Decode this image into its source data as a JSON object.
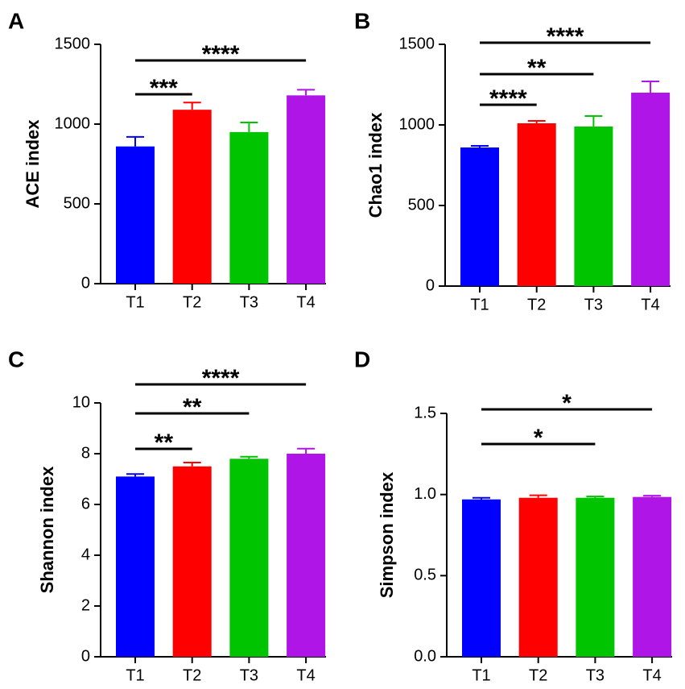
{
  "chart_data": [
    {
      "type": "bar",
      "panel": "A",
      "ylabel": "ACE index",
      "categories": [
        "T1",
        "T2",
        "T3",
        "T4"
      ],
      "values": [
        860,
        1090,
        950,
        1180
      ],
      "errors": [
        60,
        45,
        60,
        35
      ],
      "colors": [
        "#0000ff",
        "#ff0000",
        "#00c400",
        "#b015e8"
      ],
      "ylim": [
        0,
        1500
      ],
      "yticks": [
        0,
        500,
        1000,
        1500
      ],
      "annotations": [
        {
          "text": "***",
          "from": "T1",
          "to": "T2"
        },
        {
          "text": "****",
          "from": "T1",
          "to": "T4"
        }
      ]
    },
    {
      "type": "bar",
      "panel": "B",
      "ylabel": "Chao1 index",
      "categories": [
        "T1",
        "T2",
        "T3",
        "T4"
      ],
      "values": [
        860,
        1010,
        990,
        1200
      ],
      "errors": [
        10,
        15,
        65,
        70
      ],
      "colors": [
        "#0000ff",
        "#ff0000",
        "#00c400",
        "#b015e8"
      ],
      "ylim": [
        0,
        1500
      ],
      "yticks": [
        0,
        500,
        1000,
        1500
      ],
      "annotations": [
        {
          "text": "****",
          "from": "T1",
          "to": "T2"
        },
        {
          "text": "**",
          "from": "T1",
          "to": "T3"
        },
        {
          "text": "****",
          "from": "T1",
          "to": "T4"
        }
      ]
    },
    {
      "type": "bar",
      "panel": "C",
      "ylabel": "Shannon index",
      "categories": [
        "T1",
        "T2",
        "T3",
        "T4"
      ],
      "values": [
        7.1,
        7.5,
        7.8,
        8.0
      ],
      "errors": [
        0.1,
        0.15,
        0.08,
        0.2
      ],
      "colors": [
        "#0000ff",
        "#ff0000",
        "#00c400",
        "#b015e8"
      ],
      "ylim": [
        0,
        10
      ],
      "yticks": [
        0,
        2,
        4,
        6,
        8,
        10
      ],
      "annotations": [
        {
          "text": "**",
          "from": "T1",
          "to": "T2"
        },
        {
          "text": "**",
          "from": "T1",
          "to": "T3"
        },
        {
          "text": "****",
          "from": "T1",
          "to": "T4"
        }
      ]
    },
    {
      "type": "bar",
      "panel": "D",
      "ylabel": "Simpson index",
      "categories": [
        "T1",
        "T2",
        "T3",
        "T4"
      ],
      "values": [
        0.97,
        0.98,
        0.98,
        0.985
      ],
      "errors": [
        0.01,
        0.015,
        0.008,
        0.008
      ],
      "colors": [
        "#0000ff",
        "#ff0000",
        "#00c400",
        "#b015e8"
      ],
      "ylim": [
        0,
        1.5
      ],
      "yticks": [
        {
          "value": 0,
          "label": "0.0"
        },
        {
          "value": 0.5,
          "label": "0.5"
        },
        {
          "value": 1,
          "label": "1.0"
        },
        {
          "value": 1.5,
          "label": "1.5"
        }
      ],
      "annotations": [
        {
          "text": "*",
          "from": "T1",
          "to": "T3"
        },
        {
          "text": "*",
          "from": "T1",
          "to": "T4"
        }
      ]
    }
  ]
}
